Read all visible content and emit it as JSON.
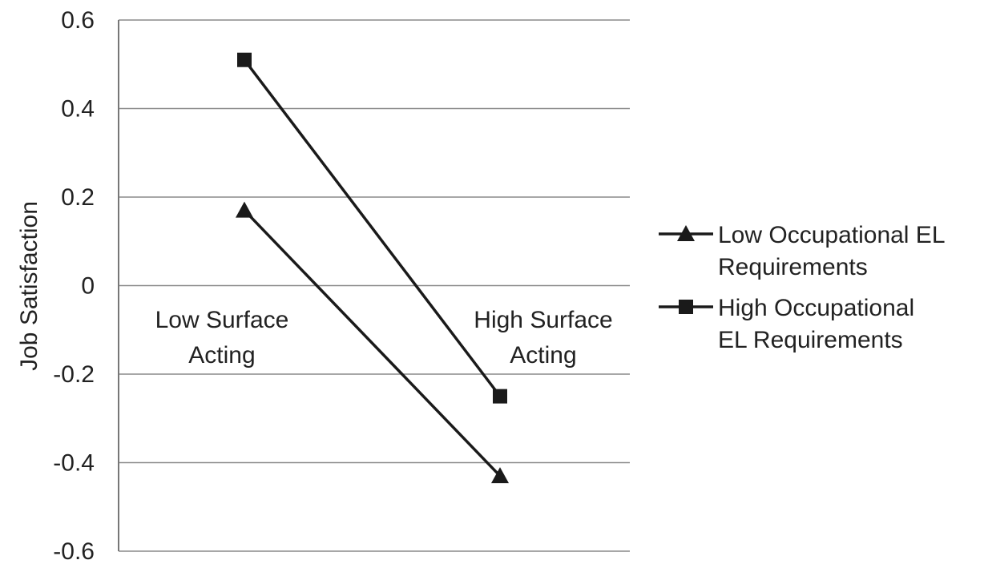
{
  "chart_data": {
    "type": "line",
    "title": "",
    "xlabel": "",
    "ylabel": "Job Satisfaction",
    "ylim": [
      -0.6,
      0.6
    ],
    "yticks": [
      0.6,
      0.4,
      0.2,
      0,
      -0.2,
      -0.4,
      -0.6
    ],
    "ytick_labels": [
      "0.6",
      "0.4",
      "0.2",
      "0",
      "-0.2",
      "-0.4",
      "-0.6"
    ],
    "categories": [
      [
        "Low Surface",
        "Acting"
      ],
      [
        "High Surface",
        "Acting"
      ]
    ],
    "grid": true,
    "legend_position": "right",
    "series": [
      {
        "name_lines": [
          "Low Occupational EL",
          "Requirements"
        ],
        "marker": "triangle",
        "color": "#1a1a1a",
        "values": [
          0.17,
          -0.43
        ]
      },
      {
        "name_lines": [
          "High Occupational",
          "EL Requirements"
        ],
        "marker": "square",
        "color": "#1a1a1a",
        "values": [
          0.51,
          -0.25
        ]
      }
    ]
  }
}
